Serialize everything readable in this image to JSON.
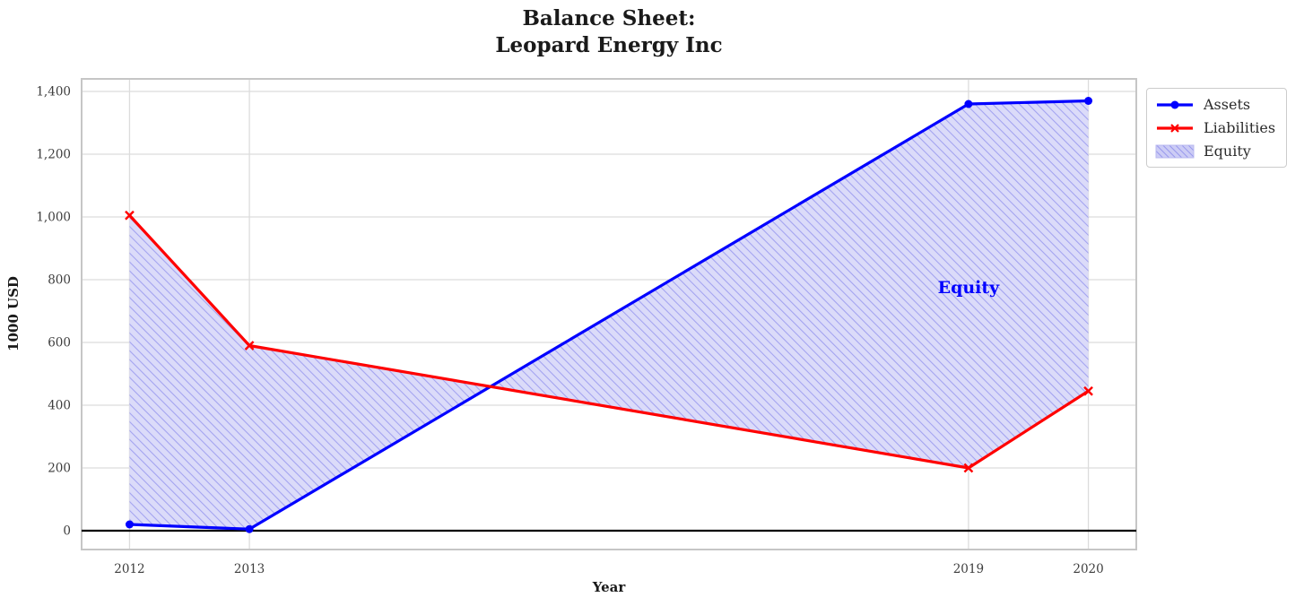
{
  "title": "Balance Sheet:\nLeopard Energy Inc",
  "chart_data": {
    "type": "line",
    "title": "Balance Sheet: Leopard Energy Inc",
    "xlabel": "Year",
    "ylabel": "1000 USD",
    "x": [
      2012,
      2013,
      2019,
      2020
    ],
    "series": [
      {
        "name": "Assets",
        "values": [
          20,
          5,
          1360,
          1370
        ],
        "color": "#0000ff",
        "marker": "circle"
      },
      {
        "name": "Liabilities",
        "values": [
          1005,
          590,
          200,
          445
        ],
        "color": "#ff0000",
        "marker": "x"
      }
    ],
    "fill_between": {
      "label": "Equity",
      "between": [
        "Assets",
        "Liabilities"
      ],
      "equity_values": [
        -985,
        -585,
        1160,
        925
      ],
      "fill_color": "#dbdbf9",
      "hatch_color": "#a2a2f0",
      "hatch_style": "diagonal"
    },
    "annotation": {
      "text": "Equity",
      "x": 2019,
      "y": 775,
      "color": "#0000ff"
    },
    "xticks": [
      2012,
      2013,
      2019,
      2020
    ],
    "yticks": [
      0,
      200,
      400,
      600,
      800,
      1000,
      1200,
      1400
    ],
    "xlim": [
      2011.6,
      2020.4
    ],
    "ylim": [
      -60,
      1440
    ],
    "grid": true,
    "zero_line": true,
    "legend": {
      "position": "outside-upper-right",
      "entries": [
        "Assets",
        "Liabilities",
        "Equity"
      ]
    }
  }
}
